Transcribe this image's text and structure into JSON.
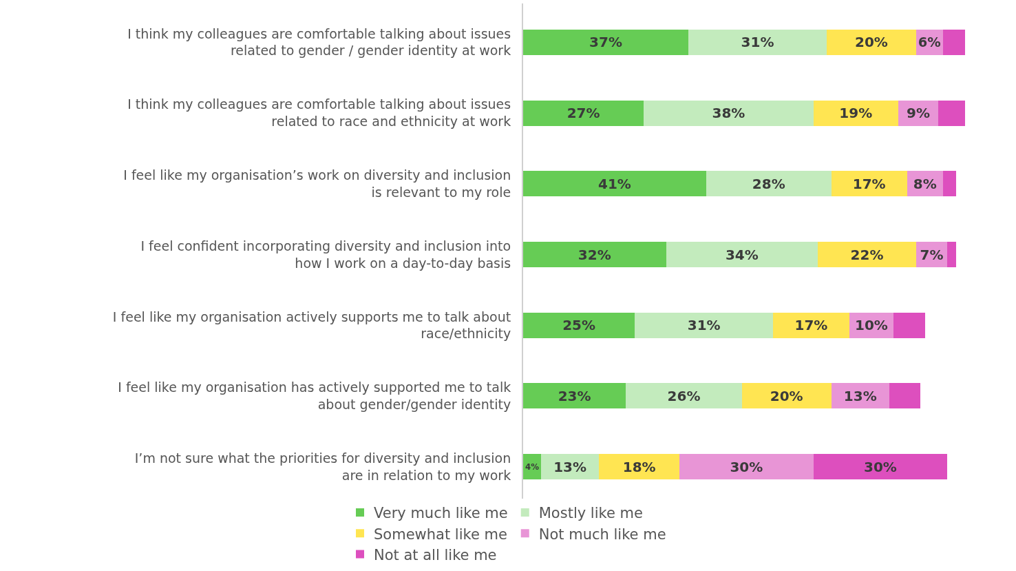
{
  "chart_data": {
    "type": "bar",
    "orientation": "horizontal",
    "stacked": true,
    "categories": [
      "I think my colleagues are comfortable talking about issues related to gender / gender identity at work",
      "I think my colleagues are comfortable talking about issues related to race and ethnicity at work",
      "I feel like my organisation’s work on diversity and inclusion is relevant to my role",
      "I feel confident incorporating diversity and inclusion into how I work on a day-to-day basis",
      "I feel like my organisation actively supports me to talk about race/ethnicity",
      "I feel like my organisation has actively supported me to talk about gender/gender identity",
      "I’m not sure what the priorities for diversity and inclusion are in relation to my work"
    ],
    "series": [
      {
        "name": "Very much like me",
        "color": "#66cc55",
        "values": [
          37,
          27,
          41,
          32,
          25,
          23,
          4
        ],
        "value_labels": [
          "37%",
          "27%",
          "41%",
          "32%",
          "25%",
          "23%",
          "4%"
        ]
      },
      {
        "name": "Mostly like me",
        "color": "#c3ebbd",
        "values": [
          31,
          38,
          28,
          34,
          31,
          26,
          13
        ],
        "value_labels": [
          "31%",
          "38%",
          "28%",
          "34%",
          "31%",
          "26%",
          "13%"
        ]
      },
      {
        "name": "Somewhat like me",
        "color": "#ffe552",
        "values": [
          20,
          19,
          17,
          22,
          17,
          20,
          18
        ],
        "value_labels": [
          "20%",
          "19%",
          "17%",
          "22%",
          "17%",
          "20%",
          "18%"
        ]
      },
      {
        "name": "Not much like me",
        "color": "#e895d6",
        "values": [
          6,
          9,
          8,
          7,
          10,
          13,
          30
        ],
        "value_labels": [
          "6%",
          "9%",
          "8%",
          "7%",
          "10%",
          "13%",
          "30%"
        ]
      },
      {
        "name": "Not at all like me",
        "color": "#dd4fbe",
        "values": [
          5,
          6,
          3,
          2,
          7,
          7,
          30
        ],
        "value_labels": [
          null,
          null,
          null,
          null,
          null,
          null,
          "30%"
        ]
      }
    ],
    "tick_labels": "y",
    "legend": "bottom"
  }
}
